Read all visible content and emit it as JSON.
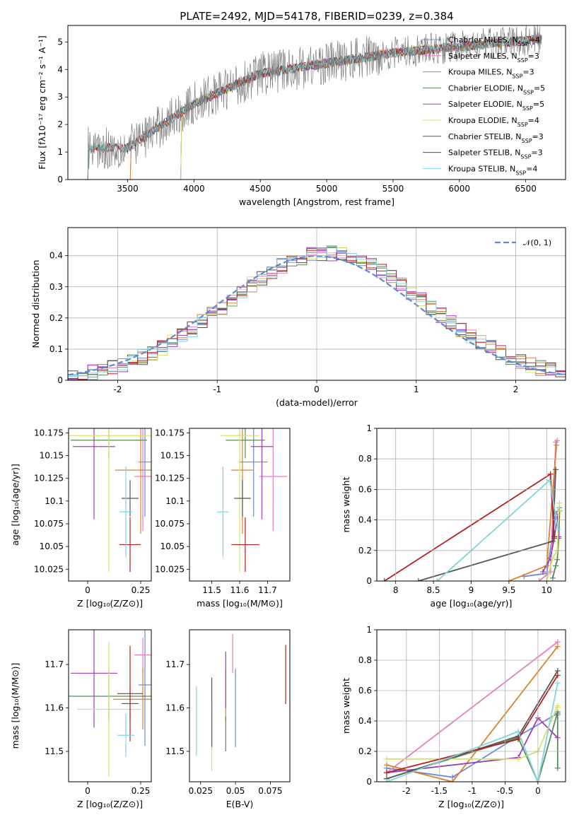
{
  "colors": [
    "#6a89d6",
    "#e57fc0",
    "#d9812e",
    "#5a8a5a",
    "#9b3fb5",
    "#d8e070",
    "#555555",
    "#b22222",
    "#7fd6dc"
  ],
  "chart_data": [
    {
      "id": "spectrum",
      "type": "line",
      "title": "PLATE=2492, MJD=54178, FIBERID=0239, z=0.384",
      "xlabel": "wavelength [Angstrom, rest frame]",
      "ylabel": "Flux [fλ10⁻¹⁷ erg cm⁻² s⁻¹ A⁻¹]",
      "xlim": [
        3050,
        6800
      ],
      "ylim": [
        0,
        5.6
      ],
      "xticks": [
        3500,
        4000,
        4500,
        5000,
        5500,
        6000,
        6500
      ],
      "yticks": [
        0,
        1,
        2,
        3,
        4,
        5
      ],
      "series": [
        {
          "name": "Chabrier MILES, N_SSP=4",
          "color": "#6a89d6",
          "start": 3520
        },
        {
          "name": "Salpeter MILES, N_SSP=3",
          "color": "#e57fc0",
          "start": 3520
        },
        {
          "name": "Kroupa MILES, N_SSP=3",
          "color": "#d9812e",
          "start": 3520
        },
        {
          "name": "Chabrier ELODIE, N_SSP=5",
          "color": "#5a8a5a",
          "start": 3900
        },
        {
          "name": "Salpeter ELODIE, N_SSP=5",
          "color": "#9b3fb5",
          "start": 3900
        },
        {
          "name": "Kroupa ELODIE, N_SSP=4",
          "color": "#d8e070",
          "start": 3900
        },
        {
          "name": "Chabrier STELIB, N_SSP=3",
          "color": "#555555",
          "start": 3200
        },
        {
          "name": "Salpeter STELIB, N_SSP=3",
          "color": "#b22222",
          "start": 3200
        },
        {
          "name": "Kroupa STELIB, N_SSP=4",
          "color": "#7fd6dc",
          "start": 3200
        }
      ],
      "legend_entries": [
        {
          "pre": "Chabrier MILES, N",
          "sub": "SSP",
          "post": "=4"
        },
        {
          "pre": "Salpeter MILES, N",
          "sub": "SSP",
          "post": "=3"
        },
        {
          "pre": "Kroupa MILES, N",
          "sub": "SSP",
          "post": "=3"
        },
        {
          "pre": "Chabrier ELODIE, N",
          "sub": "SSP",
          "post": "=5"
        },
        {
          "pre": "Salpeter ELODIE, N",
          "sub": "SSP",
          "post": "=5"
        },
        {
          "pre": "Kroupa ELODIE, N",
          "sub": "SSP",
          "post": "=4"
        },
        {
          "pre": "Chabrier STELIB, N",
          "sub": "SSP",
          "post": "=3"
        },
        {
          "pre": "Salpeter STELIB, N",
          "sub": "SSP",
          "post": "=3"
        },
        {
          "pre": "Kroupa STELIB, N",
          "sub": "SSP",
          "post": "=4"
        }
      ],
      "legend_loc": "right"
    },
    {
      "id": "residuals",
      "type": "area",
      "xlabel": "(data-model)/error",
      "ylabel": "Normed distribution",
      "xlim": [
        -2.5,
        2.5
      ],
      "ylim": [
        0,
        0.49
      ],
      "xticks": [
        -2,
        -1,
        0,
        1,
        2
      ],
      "yticks": [
        0.0,
        0.1,
        0.2,
        0.3,
        0.4
      ],
      "legend": "𝒩(0, 1)",
      "legend_loc": "top-right",
      "grid": true
    },
    {
      "id": "age-vs-Z",
      "type": "scatter",
      "xlabel": "Z [log₁₀(Z/Z⊙)]",
      "ylabel": "age  [log₁₀(age/yr)]",
      "xlim": [
        -0.09,
        0.3
      ],
      "ylim": [
        10.012,
        10.18
      ],
      "xticks": [
        0.0,
        0.25
      ],
      "yticks": [
        10.025,
        10.05,
        10.075,
        10.1,
        10.125,
        10.15,
        10.175
      ],
      "points": [
        {
          "x": 0.27,
          "y": 10.143,
          "ex": 0.03,
          "ey": 0.06,
          "color": "#6a89d6"
        },
        {
          "x": 0.26,
          "y": 10.127,
          "ex": 0.04,
          "ey": 0.06,
          "color": "#e57fc0"
        },
        {
          "x": 0.25,
          "y": 10.134,
          "ex": 0.12,
          "ey": 0.07,
          "color": "#d9812e"
        },
        {
          "x": 0.1,
          "y": 10.167,
          "ex": 0.18,
          "ey": 0.02,
          "color": "#5a8a5a"
        },
        {
          "x": 0.03,
          "y": 10.16,
          "ex": 0.1,
          "ey": 0.08,
          "color": "#9b3fb5"
        },
        {
          "x": 0.1,
          "y": 10.172,
          "ex": 0.2,
          "ey": 0.15,
          "color": "#d8e070"
        },
        {
          "x": 0.2,
          "y": 10.103,
          "ex": 0.04,
          "ey": 0.02,
          "color": "#555555"
        },
        {
          "x": 0.2,
          "y": 10.052,
          "ex": 0.05,
          "ey": 0.03,
          "color": "#b22222"
        },
        {
          "x": 0.18,
          "y": 10.088,
          "ex": 0.03,
          "ey": 0.05,
          "color": "#7fd6dc"
        }
      ]
    },
    {
      "id": "age-vs-mass",
      "type": "scatter",
      "xlabel": "mass [log₁₀(M/M⊙)]",
      "ylabel": "",
      "xlim": [
        11.42,
        11.78
      ],
      "ylim": [
        10.012,
        10.18
      ],
      "xticks": [
        11.5,
        11.6,
        11.7
      ],
      "yticks": [
        10.025,
        10.05,
        10.075,
        10.1,
        10.125,
        10.15,
        10.175
      ],
      "points": [
        {
          "x": 11.65,
          "y": 10.143,
          "ex": 0.05,
          "ey": 0.06,
          "color": "#6a89d6"
        },
        {
          "x": 11.72,
          "y": 10.127,
          "ex": 0.05,
          "ey": 0.06,
          "color": "#e57fc0"
        },
        {
          "x": 11.61,
          "y": 10.134,
          "ex": 0.04,
          "ey": 0.07,
          "color": "#d9812e"
        },
        {
          "x": 11.62,
          "y": 10.167,
          "ex": 0.07,
          "ey": 0.02,
          "color": "#5a8a5a"
        },
        {
          "x": 11.68,
          "y": 10.16,
          "ex": 0.04,
          "ey": 0.08,
          "color": "#9b3fb5"
        },
        {
          "x": 11.6,
          "y": 10.172,
          "ex": 0.07,
          "ey": 0.15,
          "color": "#d8e070"
        },
        {
          "x": 11.61,
          "y": 10.103,
          "ex": 0.03,
          "ey": 0.02,
          "color": "#555555"
        },
        {
          "x": 11.62,
          "y": 10.052,
          "ex": 0.05,
          "ey": 0.03,
          "color": "#b22222"
        },
        {
          "x": 11.54,
          "y": 10.088,
          "ex": 0.02,
          "ey": 0.05,
          "color": "#7fd6dc"
        }
      ]
    },
    {
      "id": "massweight-vs-age",
      "type": "line",
      "xlabel": "age  [log₁₀(age/yr)]",
      "ylabel": "mass weight",
      "xlim": [
        7.75,
        10.25
      ],
      "ylim": [
        0,
        1
      ],
      "xticks": [
        8.0,
        8.5,
        9.0,
        9.5,
        10.0
      ],
      "yticks": [
        0.0,
        0.2,
        0.4,
        0.6,
        0.8,
        1.0
      ],
      "grid": true,
      "series": [
        {
          "color": "#6a89d6",
          "x": [
            9.7,
            10.0,
            10.12,
            10.17
          ],
          "y": [
            0.03,
            0.05,
            0.44,
            0.48
          ]
        },
        {
          "color": "#e57fc0",
          "x": [
            9.9,
            10.05,
            10.12,
            10.14
          ],
          "y": [
            0.0,
            0.06,
            0.91,
            0.92
          ]
        },
        {
          "color": "#d9812e",
          "x": [
            9.5,
            10.0,
            10.13
          ],
          "y": [
            0.0,
            0.1,
            0.89
          ]
        },
        {
          "color": "#5a8a5a",
          "x": [
            10.08,
            10.12,
            10.14,
            10.16,
            10.17
          ],
          "y": [
            0.02,
            0.1,
            0.14,
            0.28,
            0.46
          ]
        },
        {
          "color": "#9b3fb5",
          "x": [
            9.95,
            10.05,
            10.1,
            10.14,
            10.16
          ],
          "y": [
            0.06,
            0.15,
            0.28,
            0.42,
            0.29
          ]
        },
        {
          "color": "#d8e070",
          "x": [
            10.0,
            10.08,
            10.14,
            10.16,
            10.17
          ],
          "y": [
            0.0,
            0.15,
            0.2,
            0.46,
            0.51
          ]
        },
        {
          "color": "#555555",
          "x": [
            8.3,
            10.08,
            10.12
          ],
          "y": [
            0.0,
            0.26,
            0.73
          ]
        },
        {
          "color": "#b22222",
          "x": [
            7.85,
            10.05,
            10.1
          ],
          "y": [
            0.0,
            0.7,
            0.29
          ]
        },
        {
          "color": "#7fd6dc",
          "x": [
            8.55,
            10.04,
            10.15
          ],
          "y": [
            0.0,
            0.66,
            0.34
          ]
        }
      ]
    },
    {
      "id": "mass-vs-Z",
      "type": "scatter",
      "xlabel": "Z [log₁₀(Z/Z⊙)]",
      "ylabel": "mass [log₁₀(M/M⊙)]",
      "xlim": [
        -0.09,
        0.3
      ],
      "ylim": [
        11.43,
        11.78
      ],
      "xticks": [
        0.0,
        0.25
      ],
      "yticks": [
        11.5,
        11.6,
        11.7
      ],
      "points": [
        {
          "x": 0.27,
          "y": 11.653,
          "ex": 0.03,
          "ey": 0.14,
          "color": "#6a89d6"
        },
        {
          "x": 0.26,
          "y": 11.722,
          "ex": 0.04,
          "ey": 0.04,
          "color": "#e57fc0"
        },
        {
          "x": 0.26,
          "y": 11.62,
          "ex": 0.14,
          "ey": 0.07,
          "color": "#d9812e"
        },
        {
          "x": 0.1,
          "y": 11.627,
          "ex": 0.22,
          "ey": 0.06,
          "color": "#5a8a5a"
        },
        {
          "x": 0.03,
          "y": 11.68,
          "ex": 0.11,
          "ey": 0.125,
          "color": "#9b3fb5"
        },
        {
          "x": 0.1,
          "y": 11.597,
          "ex": 0.15,
          "ey": 0.155,
          "color": "#d8e070"
        },
        {
          "x": 0.2,
          "y": 11.61,
          "ex": 0.04,
          "ey": 0.04,
          "color": "#555555"
        },
        {
          "x": 0.2,
          "y": 11.633,
          "ex": 0.06,
          "ey": 0.11,
          "color": "#b22222"
        },
        {
          "x": 0.18,
          "y": 11.537,
          "ex": 0.04,
          "ey": 0.05,
          "color": "#7fd6dc"
        }
      ]
    },
    {
      "id": "mass-vs-EBV",
      "type": "scatter",
      "xlabel": "E(B-V)",
      "ylabel": "",
      "xlim": [
        0.017,
        0.089
      ],
      "ylim": [
        11.43,
        11.78
      ],
      "xticks": [
        0.025,
        0.05,
        0.075
      ],
      "yticks": [
        11.5,
        11.6,
        11.7
      ],
      "points": [
        {
          "x": 0.05,
          "y": 11.6,
          "ey": 0.09,
          "color": "#6a89d6"
        },
        {
          "x": 0.048,
          "y": 11.725,
          "ey": 0.045,
          "color": "#e57fc0"
        },
        {
          "x": 0.043,
          "y": 11.63,
          "ey": 0.06,
          "color": "#d9812e"
        },
        {
          "x": 0.043,
          "y": 11.54,
          "ey": 0.04,
          "color": "#5a8a5a"
        },
        {
          "x": 0.043,
          "y": 11.665,
          "ey": 0.065,
          "color": "#9b3fb5"
        },
        {
          "x": 0.033,
          "y": 11.535,
          "ey": 0.08,
          "color": "#d8e070"
        },
        {
          "x": 0.033,
          "y": 11.59,
          "ey": 0.08,
          "color": "#555555"
        },
        {
          "x": 0.086,
          "y": 11.677,
          "ey": 0.068,
          "color": "#b22222"
        },
        {
          "x": 0.022,
          "y": 11.57,
          "ey": 0.08,
          "color": "#7fd6dc"
        }
      ]
    },
    {
      "id": "massweight-vs-Z",
      "type": "line",
      "xlabel": "Z [log₁₀(Z/Z⊙)]",
      "ylabel": "mass weight",
      "xlim": [
        -2.45,
        0.42
      ],
      "ylim": [
        0,
        1
      ],
      "xticks": [
        -2.0,
        -1.5,
        -1.0,
        -0.5,
        0.0
      ],
      "yticks": [
        0.0,
        0.2,
        0.4,
        0.6,
        0.8,
        1.0
      ],
      "grid": true,
      "series": [
        {
          "color": "#6a89d6",
          "x": [
            -2.3,
            -1.3,
            -0.3,
            0.3,
            0.3
          ],
          "y": [
            0.09,
            0.03,
            0.3,
            0.45,
            0.44
          ]
        },
        {
          "color": "#e57fc0",
          "x": [
            -2.3,
            0.3
          ],
          "y": [
            0.06,
            0.92
          ]
        },
        {
          "color": "#d9812e",
          "x": [
            -2.3,
            -1.3,
            0.3
          ],
          "y": [
            0.11,
            0.0,
            0.89
          ]
        },
        {
          "color": "#5a8a5a",
          "x": [
            -2.3,
            -0.3,
            0.0,
            0.3,
            0.3
          ],
          "y": [
            0.02,
            0.29,
            0.0,
            0.46,
            0.09
          ]
        },
        {
          "color": "#9b3fb5",
          "x": [
            -2.3,
            -0.3,
            0.0,
            0.3
          ],
          "y": [
            0.06,
            0.16,
            0.42,
            0.29
          ]
        },
        {
          "color": "#d8e070",
          "x": [
            -2.3,
            -0.3,
            0.0,
            0.3,
            0.3
          ],
          "y": [
            0.15,
            0.15,
            0.2,
            0.5,
            0.49
          ]
        },
        {
          "color": "#555555",
          "x": [
            -2.3,
            -0.3,
            0.3
          ],
          "y": [
            0.02,
            0.3,
            0.73
          ]
        },
        {
          "color": "#b22222",
          "x": [
            -2.3,
            -0.3,
            0.3
          ],
          "y": [
            0.06,
            0.28,
            0.7
          ]
        },
        {
          "color": "#7fd6dc",
          "x": [
            -2.3,
            -0.3,
            0.0,
            0.3
          ],
          "y": [
            0.0,
            0.33,
            0.0,
            0.65
          ]
        }
      ]
    }
  ]
}
